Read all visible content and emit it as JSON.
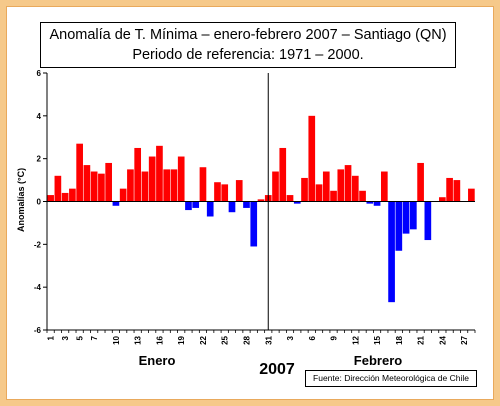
{
  "chart_data": {
    "type": "bar",
    "title_line1": "Anomalía de T. Mínima – enero-febrero 2007 – Santiago (QN)",
    "title_line2": "Periodo de referencia: 1971 – 2000.",
    "ylabel": "Anomalías (°C)",
    "ylim": [
      -6,
      6
    ],
    "yticks": [
      "6",
      "4",
      "2",
      "0",
      "-2",
      "-4",
      "-6"
    ],
    "ytick_values": [
      6,
      4,
      2,
      0,
      -2,
      -4,
      -6
    ],
    "grid": false,
    "x_tick_labels": [
      "1",
      "3",
      "5",
      "7",
      "10",
      "13",
      "16",
      "19",
      "22",
      "25",
      "28",
      "31",
      "3",
      "6",
      "9",
      "12",
      "15",
      "18",
      "21",
      "24",
      "27"
    ],
    "x_tick_day_index": [
      1,
      3,
      5,
      7,
      10,
      13,
      16,
      19,
      22,
      25,
      28,
      31,
      34,
      37,
      40,
      43,
      46,
      49,
      52,
      55,
      58
    ],
    "month_labels": [
      "Enero",
      "Febrero"
    ],
    "year_label": "2007",
    "source": "Fuente: Dirección Meteorológica de Chile",
    "positive_color": "#ff0000",
    "negative_color": "#0000ff",
    "values": [
      0.3,
      1.2,
      0.4,
      0.6,
      2.7,
      1.7,
      1.4,
      1.3,
      1.8,
      -0.2,
      0.6,
      1.5,
      2.5,
      1.4,
      2.1,
      2.6,
      1.5,
      1.5,
      2.1,
      -0.4,
      -0.3,
      1.6,
      -0.7,
      0.9,
      0.8,
      -0.5,
      1.0,
      -0.3,
      -2.1,
      0.1,
      0.3,
      1.4,
      2.5,
      0.3,
      -0.1,
      1.1,
      4.0,
      0.8,
      1.4,
      0.5,
      1.5,
      1.7,
      1.2,
      0.5,
      -0.1,
      -0.2,
      1.4,
      -4.7,
      -2.3,
      -1.5,
      -1.3,
      1.8,
      -1.8,
      0.0,
      0.2,
      1.1,
      1.0,
      0.0,
      0.6
    ]
  }
}
